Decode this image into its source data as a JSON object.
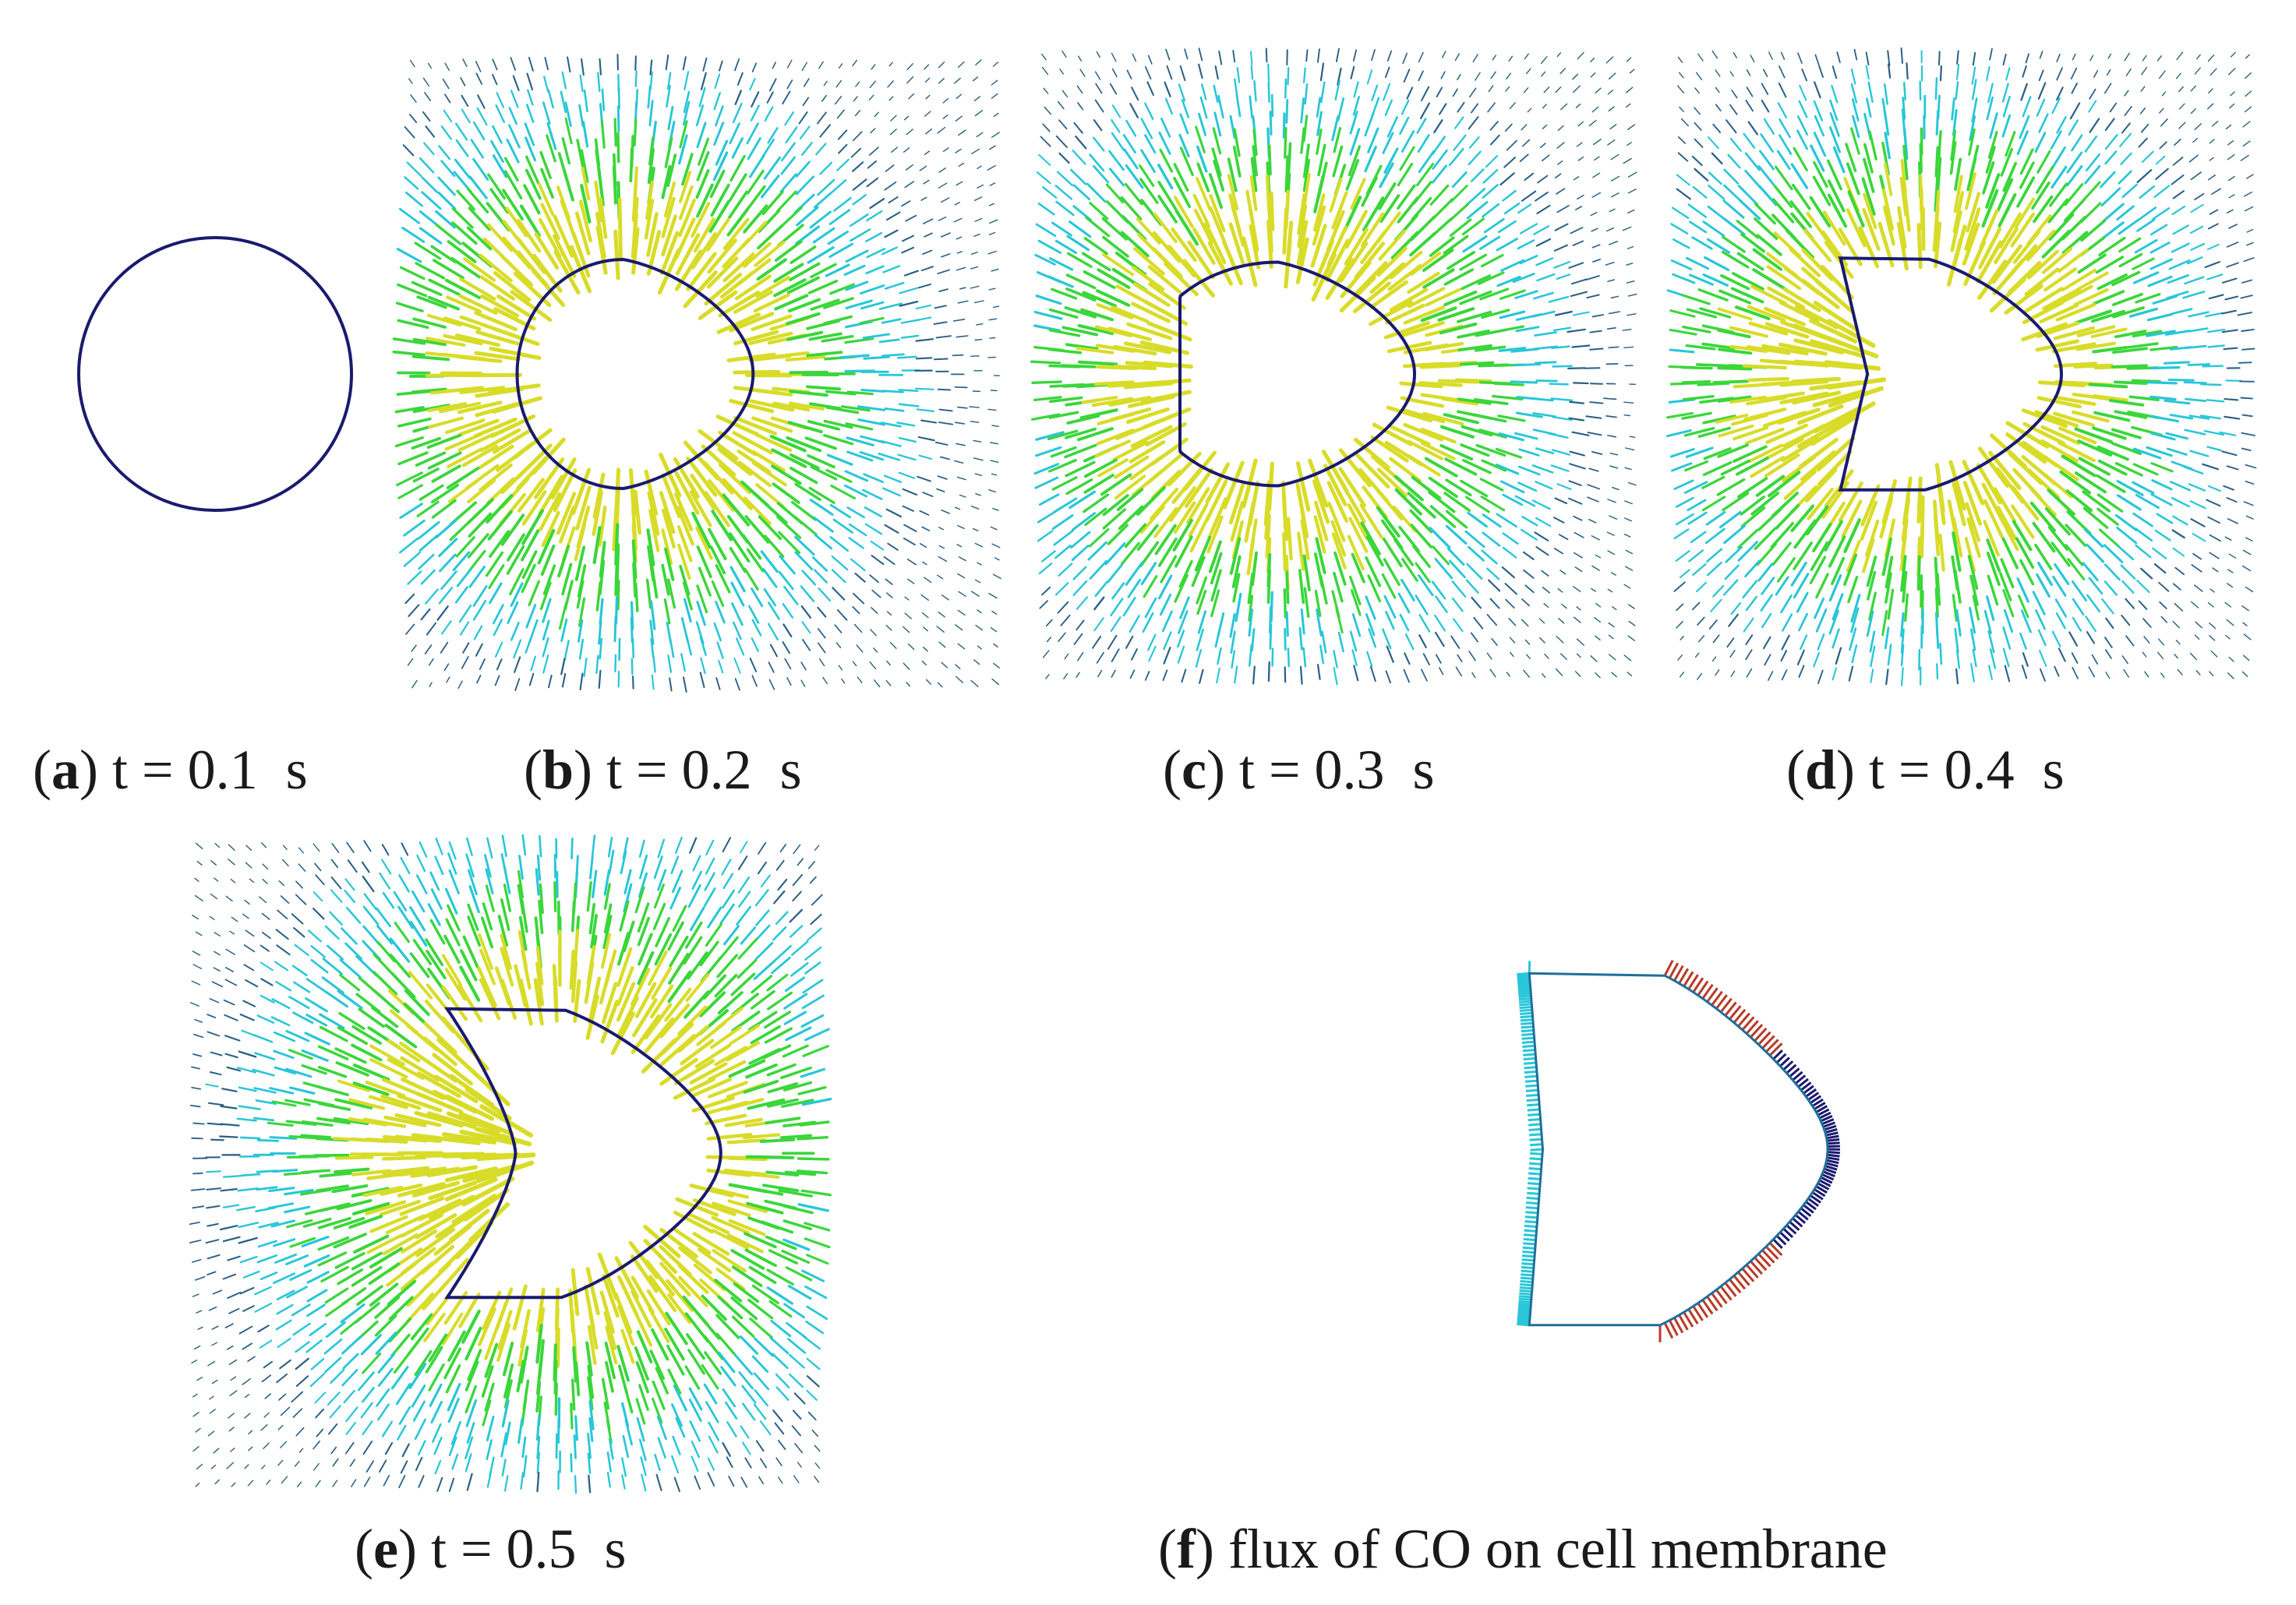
{
  "figure": {
    "panels": [
      {
        "id": "a",
        "label": "a",
        "text": " t = 0.1  s",
        "type": "membrane-outline",
        "shape": "circle"
      },
      {
        "id": "b",
        "label": "b",
        "text": " t = 0.2  s",
        "type": "vector-field",
        "shape": "dome"
      },
      {
        "id": "c",
        "label": "c",
        "text": " t = 0.3  s",
        "type": "vector-field",
        "shape": "flat-left"
      },
      {
        "id": "d",
        "label": "d",
        "text": " t = 0.4  s",
        "type": "vector-field",
        "shape": "concave-left"
      },
      {
        "id": "e",
        "label": "e",
        "text": " t = 0.5  s",
        "type": "vector-field",
        "shape": "crescent"
      },
      {
        "id": "f",
        "label": "f",
        "text": " flux of CO on cell membrane",
        "type": "membrane-flux",
        "shape": "rounded-triangle"
      }
    ],
    "colors": {
      "membrane": "#1a1a6e",
      "field_low": "#2a5f86",
      "field_mid": "#28c6d8",
      "field_high": "#3ad63a",
      "field_peak": "#d8dc28",
      "flux_high": "#b83a28"
    }
  }
}
